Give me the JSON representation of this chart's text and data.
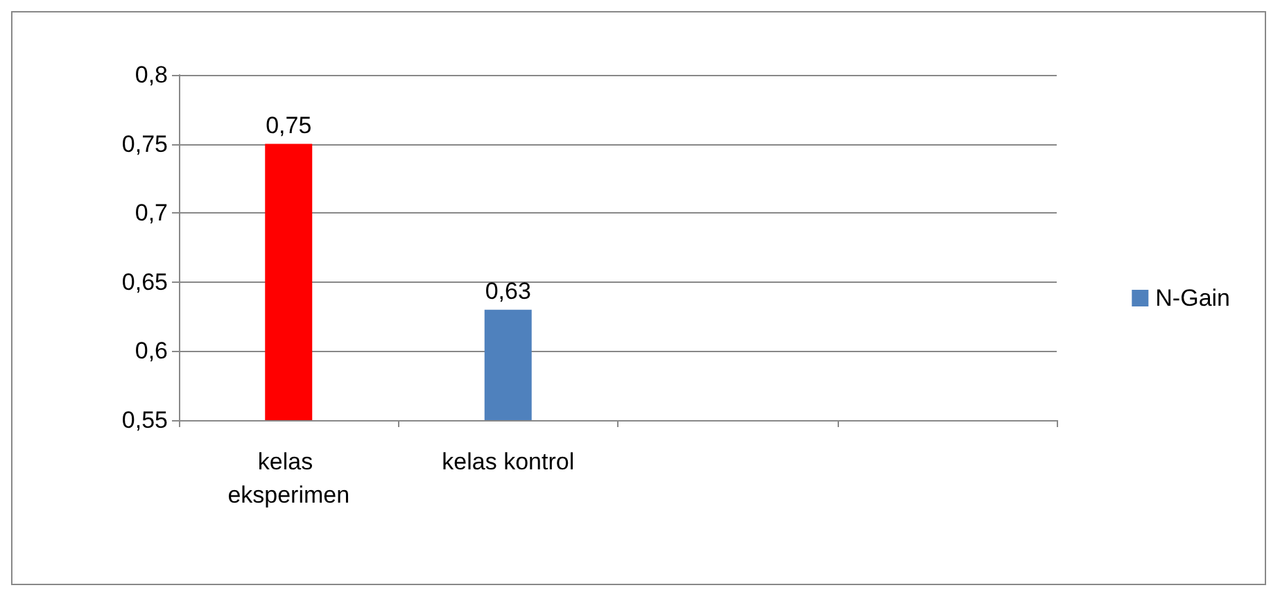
{
  "chart_data": {
    "type": "bar",
    "categories": [
      "kelas eksperimen",
      "kelas kontrol",
      null,
      null
    ],
    "series": [
      {
        "name": "N-Gain",
        "color": "#4f81bd",
        "colors": [
          "#ff0000",
          "#4f81bd",
          null,
          null
        ],
        "values": [
          0.75,
          0.63,
          null,
          null
        ],
        "value_labels": [
          "0,75",
          "0,63",
          null,
          null
        ]
      }
    ],
    "ylim": [
      0.55,
      0.8
    ],
    "yticks": [
      {
        "value": 0.55,
        "label": "0,55"
      },
      {
        "value": 0.6,
        "label": "0,6"
      },
      {
        "value": 0.65,
        "label": "0,65"
      },
      {
        "value": 0.7,
        "label": "0,7"
      },
      {
        "value": 0.75,
        "label": "0,75"
      },
      {
        "value": 0.8,
        "label": "0,8"
      }
    ],
    "grid": "y",
    "legend": "right"
  }
}
